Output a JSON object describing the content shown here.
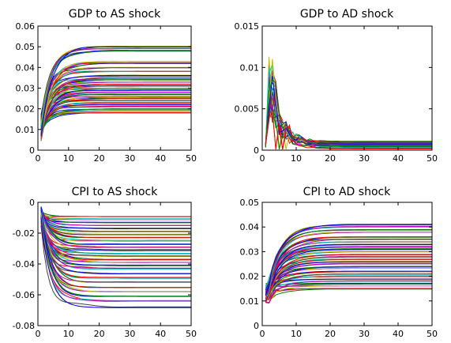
{
  "chart_data": [
    {
      "type": "line",
      "title": "GDP to AS shock",
      "x_range": [
        0,
        50
      ],
      "ylim": [
        0,
        0.06
      ],
      "xticks": [
        0,
        10,
        20,
        30,
        40,
        50
      ],
      "yticks": [
        0,
        0.01,
        0.02,
        0.03,
        0.04,
        0.05,
        0.06
      ],
      "xtick_labels": [
        "0",
        "10",
        "20",
        "30",
        "40",
        "50"
      ],
      "ytick_labels": [
        "0",
        "0.01",
        "0.02",
        "0.03",
        "0.04",
        "0.05",
        "0.06"
      ],
      "pattern": "rise-settle",
      "start_range": [
        0.006,
        0.014
      ],
      "peak_at": 6,
      "settle_levels": [
        0.018,
        0.019,
        0.02,
        0.021,
        0.022,
        0.023,
        0.024,
        0.025,
        0.026,
        0.027,
        0.028,
        0.029,
        0.03,
        0.031,
        0.032,
        0.033,
        0.034,
        0.035,
        0.036,
        0.038,
        0.04,
        0.042,
        0.043,
        0.048,
        0.049,
        0.05
      ],
      "grid": false
    },
    {
      "type": "line",
      "title": "GDP to AD shock",
      "x_range": [
        0,
        50
      ],
      "ylim": [
        0,
        0.015
      ],
      "xticks": [
        0,
        10,
        20,
        30,
        40,
        50
      ],
      "yticks": [
        0,
        0.005,
        0.01,
        0.015
      ],
      "xtick_labels": [
        "0",
        "10",
        "20",
        "30",
        "40",
        "50"
      ],
      "ytick_labels": [
        "0",
        "0.005",
        "0.01",
        "0.015"
      ],
      "pattern": "spike-decay",
      "peak_range": [
        0.004,
        0.0127
      ],
      "peak_at": 2,
      "settle_levels": [
        0.0002,
        0.0004,
        0.0005,
        0.0006,
        0.0007,
        0.0008,
        0.0009,
        0.001
      ],
      "grid": false
    },
    {
      "type": "line",
      "title": "CPI to AS shock",
      "x_range": [
        0,
        50
      ],
      "ylim": [
        -0.08,
        0
      ],
      "xticks": [
        0,
        10,
        20,
        30,
        40,
        50
      ],
      "yticks": [
        -0.08,
        -0.06,
        -0.04,
        -0.02,
        0
      ],
      "xtick_labels": [
        "0",
        "10",
        "20",
        "30",
        "40",
        "50"
      ],
      "ytick_labels": [
        "-0.08",
        "-0.06",
        "-0.04",
        "-0.02",
        "0"
      ],
      "pattern": "dip-settle",
      "start_range": [
        -0.01,
        -0.005
      ],
      "trough_at": 8,
      "settle_levels": [
        -0.009,
        -0.011,
        -0.013,
        -0.015,
        -0.017,
        -0.019,
        -0.021,
        -0.023,
        -0.025,
        -0.027,
        -0.029,
        -0.031,
        -0.033,
        -0.035,
        -0.037,
        -0.039,
        -0.041,
        -0.043,
        -0.046,
        -0.049,
        -0.052,
        -0.055,
        -0.058,
        -0.061,
        -0.064,
        -0.068
      ],
      "grid": false
    },
    {
      "type": "line",
      "title": "CPI to AD shock",
      "x_range": [
        0,
        50
      ],
      "ylim": [
        0,
        0.05
      ],
      "xticks": [
        0,
        10,
        20,
        30,
        40,
        50
      ],
      "yticks": [
        0,
        0.01,
        0.02,
        0.03,
        0.04,
        0.05
      ],
      "xtick_labels": [
        "0",
        "10",
        "20",
        "30",
        "40",
        "50"
      ],
      "ytick_labels": [
        "0",
        "0.01",
        "0.02",
        "0.03",
        "0.04",
        "0.05"
      ],
      "pattern": "rise-plateau",
      "start_range": [
        0.009,
        0.016
      ],
      "settle_levels": [
        0.015,
        0.016,
        0.017,
        0.018,
        0.019,
        0.02,
        0.021,
        0.022,
        0.023,
        0.024,
        0.025,
        0.026,
        0.027,
        0.028,
        0.029,
        0.03,
        0.031,
        0.032,
        0.033,
        0.034,
        0.035,
        0.036,
        0.038,
        0.039,
        0.04,
        0.041
      ],
      "grid": false
    }
  ],
  "colors": [
    "#0000ff",
    "#008000",
    "#ff0000",
    "#00bfbf",
    "#bf00bf",
    "#bfbf00",
    "#404040"
  ]
}
